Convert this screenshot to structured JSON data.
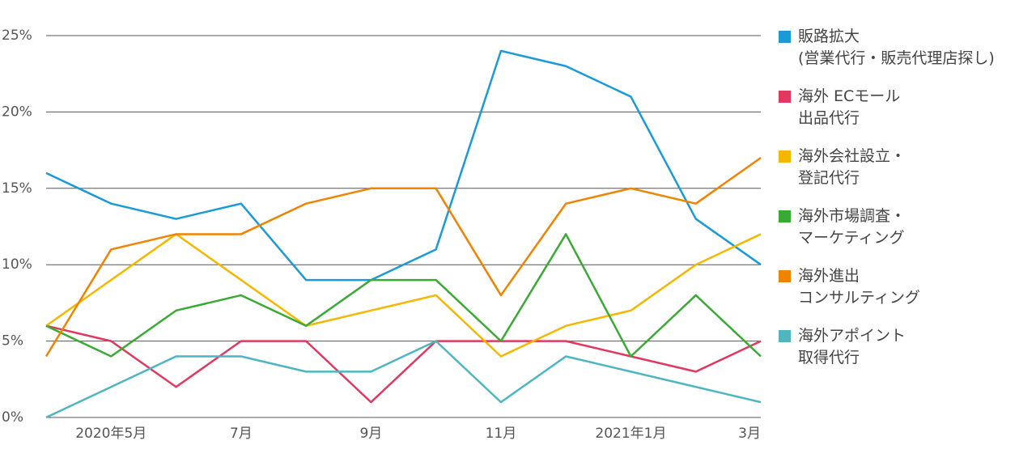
{
  "chart_data": {
    "type": "line",
    "categories": [
      null,
      "2020年5月",
      null,
      "7月",
      null,
      "9月",
      null,
      "11月",
      null,
      "2021年1月",
      null,
      "3月"
    ],
    "ylim": [
      0,
      25
    ],
    "yticks": [
      {
        "value": 0,
        "label": "0%"
      },
      {
        "value": 5,
        "label": "5%"
      },
      {
        "value": 10,
        "label": "10%"
      },
      {
        "value": 15,
        "label": "15%"
      },
      {
        "value": 20,
        "label": "20%"
      },
      {
        "value": 25,
        "label": "25%"
      }
    ],
    "grid": true,
    "legend": "right",
    "series": [
      {
        "name": "販路拡大\n(営業代行・販売代理店探し)",
        "color": "#1a9ad6",
        "values": [
          16,
          14,
          13,
          14,
          9,
          9,
          11,
          24,
          23,
          21,
          13,
          10
        ]
      },
      {
        "name": "海外 ECモール\n出品代行",
        "color": "#e0385e",
        "values": [
          6,
          5,
          2,
          5,
          5,
          1,
          5,
          5,
          5,
          4,
          3,
          5
        ]
      },
      {
        "name": "海外会社設立・\n登記代行",
        "color": "#f5b800",
        "values": [
          6,
          9,
          12,
          9,
          6,
          7,
          8,
          4,
          6,
          7,
          10,
          12
        ]
      },
      {
        "name": "海外市場調査・\nマーケティング",
        "color": "#3aaa35",
        "values": [
          6,
          4,
          7,
          8,
          6,
          9,
          9,
          5,
          12,
          4,
          8,
          4
        ]
      },
      {
        "name": "海外進出\nコンサルティング",
        "color": "#f08300",
        "values": [
          4,
          11,
          12,
          12,
          14,
          15,
          15,
          8,
          14,
          15,
          14,
          17
        ]
      },
      {
        "name": "海外アポイント\n取得代行",
        "color": "#4db6c0",
        "values": [
          0,
          2,
          4,
          4,
          3,
          3,
          5,
          1,
          4,
          3,
          2,
          1
        ]
      }
    ]
  }
}
